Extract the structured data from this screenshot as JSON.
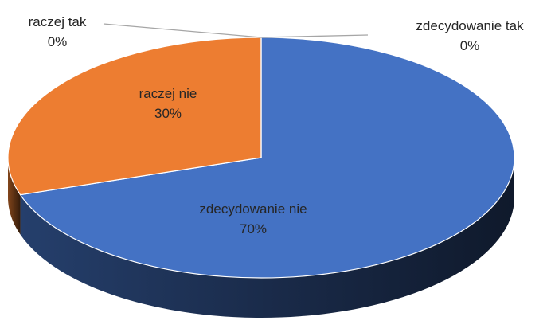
{
  "chart_data": {
    "type": "pie3d",
    "categories": [
      "zdecydowanie tak",
      "zdecydowanie nie",
      "raczej nie",
      "raczej tak"
    ],
    "values": [
      0,
      70,
      30,
      0
    ],
    "value_labels": [
      "0%",
      "70%",
      "30%",
      "0%"
    ],
    "colors": [
      "#a5a5a5",
      "#4472c4",
      "#ed7d31",
      "#ffc000"
    ]
  }
}
